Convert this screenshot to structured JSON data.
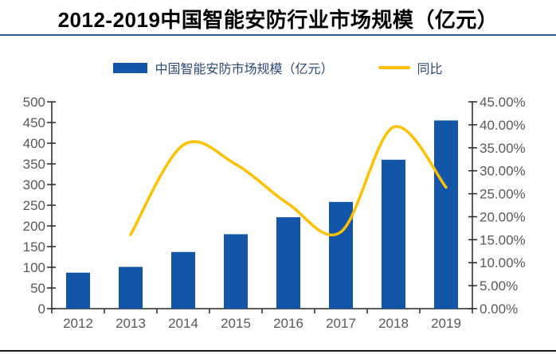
{
  "page": {
    "title": "2012-2019中国智能安防行业市场规模（亿元）"
  },
  "legend": {
    "items": [
      {
        "label": "中国智能安防市场规模（亿元）",
        "swatch": "bar",
        "color": "#1355A8"
      },
      {
        "label": "同比",
        "swatch": "line",
        "color": "#FFC000"
      }
    ]
  },
  "chart_data": {
    "type": "bar+line",
    "title": "2012-2019中国智能安防行业市场规模（亿元）",
    "categories": [
      "2012",
      "2013",
      "2014",
      "2015",
      "2016",
      "2017",
      "2018",
      "2019"
    ],
    "series": [
      {
        "name": "中国智能安防市场规模（亿元）",
        "type": "bar",
        "axis": "left",
        "color": "#1355A8",
        "values": [
          87,
          101,
          137,
          180,
          221,
          258,
          360,
          455
        ]
      },
      {
        "name": "同比",
        "type": "line",
        "axis": "right",
        "color": "#FFC000",
        "unit": "%",
        "values": [
          null,
          16.1,
          35.6,
          31.4,
          22.8,
          16.7,
          39.5,
          26.4
        ]
      }
    ],
    "left_axis": {
      "min": 0,
      "max": 500,
      "step": 50,
      "tick_labels": [
        "0",
        "50",
        "100",
        "150",
        "200",
        "250",
        "300",
        "350",
        "400",
        "450",
        "500"
      ]
    },
    "right_axis": {
      "min": 0,
      "max": 45,
      "step": 5,
      "tick_labels": [
        "0.00%",
        "5.00%",
        "10.00%",
        "15.00%",
        "20.00%",
        "25.00%",
        "30.00%",
        "35.00%",
        "40.00%",
        "45.00%"
      ]
    },
    "grid": false,
    "legend_position": "top"
  },
  "colors": {
    "bar": "#1355A8",
    "line": "#FFC000",
    "title_rule": "#2F5B9D",
    "footer_rule": "#1B1B1B",
    "axis": "#262626",
    "tick_label": "#595959",
    "legend_text": "#2B4A75"
  }
}
